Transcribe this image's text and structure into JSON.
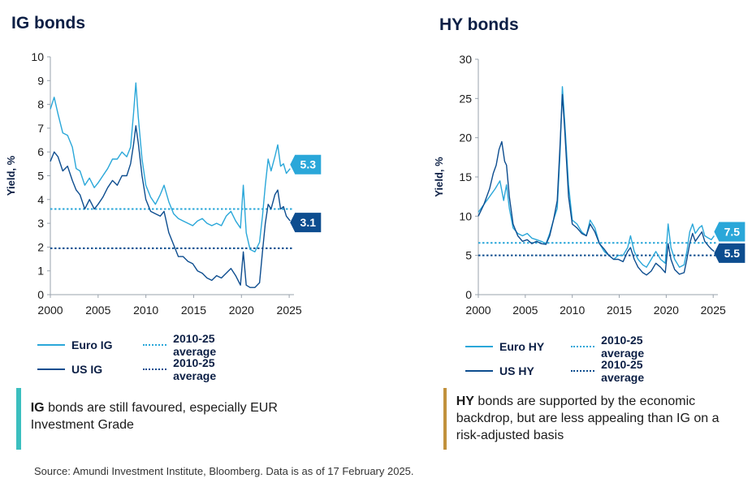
{
  "colors": {
    "euro": "#2aa7d9",
    "us": "#0d4d8f",
    "dark_text": "#0c1f45",
    "note_ig": "#3bbfbf",
    "note_hy": "#c1913c"
  },
  "source": "Source: Amundi Investment Institute, Bloomberg. Data is as of 17 February 2025.",
  "panels": {
    "ig": {
      "title": "IG bonds",
      "note_bold": "IG",
      "note_rest": " bonds are still favoured, especially EUR Investment Grade",
      "legend": {
        "euro": "Euro IG",
        "euro_avg": "2010-25 average",
        "us": "US IG",
        "us_avg": "2010-25 average"
      }
    },
    "hy": {
      "title": "HY bonds",
      "note_bold": "HY",
      "note_rest": " bonds are supported by the economic backdrop, but are less appealing than IG on a risk-adjusted basis",
      "legend": {
        "euro": "Euro HY",
        "euro_avg": "2010-25 average",
        "us": "US HY",
        "us_avg": "2010-25 average"
      }
    }
  },
  "chart_data": [
    {
      "type": "line",
      "title": "IG bonds",
      "ylabel": "Yield, %",
      "xlim": [
        2000,
        2025.5
      ],
      "ylim": [
        0,
        10
      ],
      "xticks": [
        2000,
        2005,
        2010,
        2015,
        2020,
        2025
      ],
      "yticks": [
        0,
        1,
        2,
        3,
        4,
        5,
        6,
        7,
        8,
        9,
        10
      ],
      "series": [
        {
          "name": "Euro IG",
          "color": "#2aa7d9",
          "end_label": "5.3",
          "points": [
            [
              2000,
              7.8
            ],
            [
              2000.4,
              8.3
            ],
            [
              2000.8,
              7.6
            ],
            [
              2001.3,
              6.8
            ],
            [
              2001.8,
              6.7
            ],
            [
              2002.3,
              6.2
            ],
            [
              2002.7,
              5.3
            ],
            [
              2003.1,
              5.2
            ],
            [
              2003.6,
              4.6
            ],
            [
              2004.1,
              4.9
            ],
            [
              2004.6,
              4.5
            ],
            [
              2005.0,
              4.7
            ],
            [
              2005.5,
              5.0
            ],
            [
              2006.0,
              5.3
            ],
            [
              2006.5,
              5.7
            ],
            [
              2007.0,
              5.7
            ],
            [
              2007.5,
              6.0
            ],
            [
              2008.0,
              5.8
            ],
            [
              2008.4,
              6.2
            ],
            [
              2008.7,
              7.6
            ],
            [
              2008.95,
              8.9
            ],
            [
              2009.2,
              7.5
            ],
            [
              2009.6,
              5.7
            ],
            [
              2010.0,
              4.6
            ],
            [
              2010.5,
              4.1
            ],
            [
              2011.0,
              3.8
            ],
            [
              2011.5,
              4.2
            ],
            [
              2011.9,
              4.6
            ],
            [
              2012.4,
              3.9
            ],
            [
              2012.9,
              3.4
            ],
            [
              2013.4,
              3.2
            ],
            [
              2013.9,
              3.1
            ],
            [
              2014.4,
              3.0
            ],
            [
              2014.9,
              2.9
            ],
            [
              2015.4,
              3.1
            ],
            [
              2015.9,
              3.2
            ],
            [
              2016.4,
              3.0
            ],
            [
              2016.9,
              2.9
            ],
            [
              2017.4,
              3.0
            ],
            [
              2017.9,
              2.9
            ],
            [
              2018.4,
              3.3
            ],
            [
              2018.9,
              3.5
            ],
            [
              2019.4,
              3.1
            ],
            [
              2019.9,
              2.8
            ],
            [
              2020.2,
              4.6
            ],
            [
              2020.5,
              2.6
            ],
            [
              2020.9,
              1.9
            ],
            [
              2021.4,
              1.8
            ],
            [
              2021.9,
              2.2
            ],
            [
              2022.2,
              3.3
            ],
            [
              2022.5,
              4.6
            ],
            [
              2022.8,
              5.7
            ],
            [
              2023.1,
              5.2
            ],
            [
              2023.5,
              5.8
            ],
            [
              2023.8,
              6.3
            ],
            [
              2024.1,
              5.4
            ],
            [
              2024.4,
              5.5
            ],
            [
              2024.7,
              5.1
            ],
            [
              2025.1,
              5.3
            ]
          ]
        },
        {
          "name": "US IG",
          "color": "#0d4d8f",
          "end_label": "3.1",
          "points": [
            [
              2000,
              5.6
            ],
            [
              2000.4,
              6.0
            ],
            [
              2000.8,
              5.8
            ],
            [
              2001.3,
              5.2
            ],
            [
              2001.8,
              5.4
            ],
            [
              2002.3,
              4.8
            ],
            [
              2002.7,
              4.4
            ],
            [
              2003.1,
              4.2
            ],
            [
              2003.6,
              3.6
            ],
            [
              2004.1,
              4.0
            ],
            [
              2004.6,
              3.6
            ],
            [
              2005.0,
              3.8
            ],
            [
              2005.5,
              4.1
            ],
            [
              2006.0,
              4.5
            ],
            [
              2006.5,
              4.8
            ],
            [
              2007.0,
              4.6
            ],
            [
              2007.5,
              5.0
            ],
            [
              2008.0,
              5.0
            ],
            [
              2008.4,
              5.5
            ],
            [
              2008.7,
              6.3
            ],
            [
              2008.95,
              7.1
            ],
            [
              2009.2,
              6.4
            ],
            [
              2009.6,
              5.0
            ],
            [
              2010.0,
              4.0
            ],
            [
              2010.5,
              3.5
            ],
            [
              2011.0,
              3.4
            ],
            [
              2011.5,
              3.3
            ],
            [
              2011.9,
              3.5
            ],
            [
              2012.4,
              2.6
            ],
            [
              2012.9,
              2.1
            ],
            [
              2013.4,
              1.6
            ],
            [
              2013.9,
              1.6
            ],
            [
              2014.4,
              1.4
            ],
            [
              2014.9,
              1.3
            ],
            [
              2015.4,
              1.0
            ],
            [
              2015.9,
              0.9
            ],
            [
              2016.4,
              0.7
            ],
            [
              2016.9,
              0.6
            ],
            [
              2017.4,
              0.8
            ],
            [
              2017.9,
              0.7
            ],
            [
              2018.4,
              0.9
            ],
            [
              2018.9,
              1.1
            ],
            [
              2019.4,
              0.8
            ],
            [
              2019.9,
              0.4
            ],
            [
              2020.2,
              1.8
            ],
            [
              2020.5,
              0.4
            ],
            [
              2020.9,
              0.3
            ],
            [
              2021.4,
              0.3
            ],
            [
              2021.9,
              0.5
            ],
            [
              2022.2,
              1.8
            ],
            [
              2022.5,
              3.0
            ],
            [
              2022.8,
              3.8
            ],
            [
              2023.1,
              3.6
            ],
            [
              2023.5,
              4.2
            ],
            [
              2023.8,
              4.4
            ],
            [
              2024.1,
              3.6
            ],
            [
              2024.4,
              3.7
            ],
            [
              2024.7,
              3.3
            ],
            [
              2025.1,
              3.1
            ]
          ]
        }
      ],
      "averages": [
        {
          "name": "2010-25 average",
          "series": "Euro IG",
          "value": 3.6,
          "color": "#2aa7d9"
        },
        {
          "name": "2010-25 average",
          "series": "US IG",
          "value": 1.95,
          "color": "#0d4d8f"
        }
      ]
    },
    {
      "type": "line",
      "title": "HY bonds",
      "ylabel": "Yield, %",
      "xlim": [
        2000,
        2025.5
      ],
      "ylim": [
        0,
        30
      ],
      "xticks": [
        2000,
        2005,
        2010,
        2015,
        2020,
        2025
      ],
      "yticks": [
        0,
        5,
        10,
        15,
        20,
        25,
        30
      ],
      "series": [
        {
          "name": "Euro HY",
          "color": "#2aa7d9",
          "end_label": "7.5",
          "points": [
            [
              2000,
              10.5
            ],
            [
              2000.6,
              11.5
            ],
            [
              2001.2,
              12.5
            ],
            [
              2001.8,
              13.5
            ],
            [
              2002.3,
              14.5
            ],
            [
              2002.7,
              12.0
            ],
            [
              2003.0,
              14.0
            ],
            [
              2003.3,
              11.0
            ],
            [
              2003.7,
              8.5
            ],
            [
              2004.2,
              7.8
            ],
            [
              2004.7,
              7.5
            ],
            [
              2005.2,
              7.8
            ],
            [
              2005.7,
              7.2
            ],
            [
              2006.2,
              7.0
            ],
            [
              2006.7,
              6.8
            ],
            [
              2007.2,
              6.5
            ],
            [
              2007.6,
              7.8
            ],
            [
              2008.0,
              9.5
            ],
            [
              2008.4,
              11.0
            ],
            [
              2008.7,
              18.0
            ],
            [
              2008.95,
              26.5
            ],
            [
              2009.2,
              22.0
            ],
            [
              2009.6,
              14.0
            ],
            [
              2010.0,
              9.5
            ],
            [
              2010.5,
              9.0
            ],
            [
              2011.0,
              8.0
            ],
            [
              2011.5,
              7.5
            ],
            [
              2011.9,
              9.5
            ],
            [
              2012.4,
              8.5
            ],
            [
              2012.9,
              6.5
            ],
            [
              2013.4,
              5.5
            ],
            [
              2013.9,
              5.0
            ],
            [
              2014.4,
              4.5
            ],
            [
              2014.9,
              5.0
            ],
            [
              2015.4,
              5.0
            ],
            [
              2015.9,
              6.0
            ],
            [
              2016.2,
              7.5
            ],
            [
              2016.6,
              5.5
            ],
            [
              2017.0,
              4.5
            ],
            [
              2017.5,
              3.8
            ],
            [
              2017.9,
              3.5
            ],
            [
              2018.4,
              4.5
            ],
            [
              2018.9,
              5.5
            ],
            [
              2019.4,
              4.5
            ],
            [
              2019.9,
              4.0
            ],
            [
              2020.2,
              9.0
            ],
            [
              2020.5,
              6.0
            ],
            [
              2020.9,
              4.5
            ],
            [
              2021.4,
              3.5
            ],
            [
              2021.9,
              3.8
            ],
            [
              2022.2,
              5.5
            ],
            [
              2022.5,
              8.0
            ],
            [
              2022.8,
              9.0
            ],
            [
              2023.1,
              7.8
            ],
            [
              2023.5,
              8.5
            ],
            [
              2023.8,
              8.8
            ],
            [
              2024.1,
              7.5
            ],
            [
              2024.5,
              7.2
            ],
            [
              2024.8,
              7.0
            ],
            [
              2025.1,
              7.5
            ]
          ]
        },
        {
          "name": "US HY",
          "color": "#0d4d8f",
          "end_label": "5.5",
          "points": [
            [
              2000,
              10.0
            ],
            [
              2000.6,
              11.5
            ],
            [
              2001.2,
              13.5
            ],
            [
              2001.6,
              15.5
            ],
            [
              2001.9,
              16.5
            ],
            [
              2002.2,
              18.5
            ],
            [
              2002.5,
              19.5
            ],
            [
              2002.8,
              17.0
            ],
            [
              2003.0,
              16.5
            ],
            [
              2003.3,
              12.5
            ],
            [
              2003.7,
              9.0
            ],
            [
              2004.2,
              7.5
            ],
            [
              2004.7,
              6.8
            ],
            [
              2005.2,
              7.0
            ],
            [
              2005.7,
              6.5
            ],
            [
              2006.2,
              6.8
            ],
            [
              2006.7,
              6.5
            ],
            [
              2007.2,
              6.4
            ],
            [
              2007.6,
              7.5
            ],
            [
              2008.0,
              9.5
            ],
            [
              2008.4,
              12.0
            ],
            [
              2008.7,
              19.0
            ],
            [
              2008.95,
              25.5
            ],
            [
              2009.2,
              21.0
            ],
            [
              2009.6,
              12.5
            ],
            [
              2010.0,
              9.0
            ],
            [
              2010.5,
              8.5
            ],
            [
              2011.0,
              7.8
            ],
            [
              2011.5,
              7.5
            ],
            [
              2011.9,
              9.0
            ],
            [
              2012.4,
              8.0
            ],
            [
              2012.9,
              6.5
            ],
            [
              2013.4,
              5.8
            ],
            [
              2013.9,
              5.0
            ],
            [
              2014.4,
              4.5
            ],
            [
              2014.9,
              4.5
            ],
            [
              2015.4,
              4.2
            ],
            [
              2015.9,
              5.5
            ],
            [
              2016.2,
              6.0
            ],
            [
              2016.6,
              4.5
            ],
            [
              2017.0,
              3.5
            ],
            [
              2017.5,
              2.8
            ],
            [
              2017.9,
              2.5
            ],
            [
              2018.4,
              3.0
            ],
            [
              2018.9,
              4.0
            ],
            [
              2019.4,
              3.5
            ],
            [
              2019.9,
              2.8
            ],
            [
              2020.2,
              6.5
            ],
            [
              2020.5,
              4.5
            ],
            [
              2020.9,
              3.2
            ],
            [
              2021.4,
              2.6
            ],
            [
              2021.9,
              2.8
            ],
            [
              2022.2,
              4.5
            ],
            [
              2022.5,
              6.5
            ],
            [
              2022.8,
              7.8
            ],
            [
              2023.1,
              6.8
            ],
            [
              2023.5,
              7.5
            ],
            [
              2023.8,
              8.0
            ],
            [
              2024.1,
              6.8
            ],
            [
              2024.5,
              6.2
            ],
            [
              2024.8,
              5.8
            ],
            [
              2025.1,
              5.5
            ]
          ]
        }
      ],
      "averages": [
        {
          "name": "2010-25 average",
          "series": "Euro HY",
          "value": 6.6,
          "color": "#2aa7d9"
        },
        {
          "name": "2010-25 average",
          "series": "US HY",
          "value": 5.0,
          "color": "#0d4d8f"
        }
      ]
    }
  ]
}
